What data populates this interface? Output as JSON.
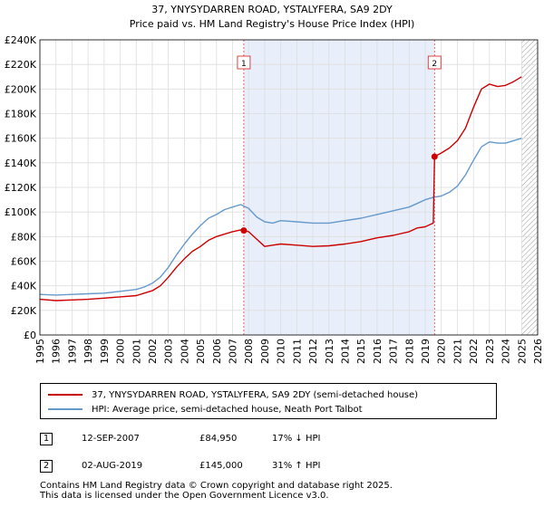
{
  "chart_data": {
    "type": "line",
    "title": "37, YNYSYDARREN ROAD, YSTALYFERA, SA9 2DY",
    "subtitle": "Price paid vs. HM Land Registry's House Price Index (HPI)",
    "xlabel": "",
    "ylabel": "",
    "xlim": [
      1995,
      2026
    ],
    "ylim": [
      0,
      240000
    ],
    "y_ticks": [
      0,
      20000,
      40000,
      60000,
      80000,
      100000,
      120000,
      140000,
      160000,
      180000,
      200000,
      220000,
      240000
    ],
    "y_tick_labels": [
      "£0",
      "£20K",
      "£40K",
      "£60K",
      "£80K",
      "£100K",
      "£120K",
      "£140K",
      "£160K",
      "£180K",
      "£200K",
      "£220K",
      "£240K"
    ],
    "x_ticks": [
      1995,
      1996,
      1997,
      1998,
      1999,
      2000,
      2001,
      2002,
      2003,
      2004,
      2005,
      2006,
      2007,
      2008,
      2009,
      2010,
      2011,
      2012,
      2013,
      2014,
      2015,
      2016,
      2017,
      2018,
      2019,
      2020,
      2021,
      2022,
      2023,
      2024,
      2025,
      2026
    ],
    "grid": true,
    "shaded_region": [
      2007.7,
      2019.58
    ],
    "hatched_region": [
      2025.0,
      2026
    ],
    "series": [
      {
        "name": "37, YNYSYDARREN ROAD, YSTALYFERA, SA9 2DY (semi-detached house)",
        "color": "#cc0000",
        "x": [
          1995.0,
          1996.0,
          1997.0,
          1998.0,
          1999.0,
          2000.0,
          2001.0,
          2001.5,
          2002.0,
          2002.5,
          2003.0,
          2003.5,
          2004.0,
          2004.5,
          2005.0,
          2005.5,
          2006.0,
          2006.5,
          2007.0,
          2007.5,
          2007.7,
          2008.0,
          2008.5,
          2009.0,
          2009.5,
          2010.0,
          2011.0,
          2012.0,
          2013.0,
          2014.0,
          2015.0,
          2016.0,
          2017.0,
          2018.0,
          2018.5,
          2019.0,
          2019.5,
          2019.58,
          2020.0,
          2020.5,
          2021.0,
          2021.5,
          2022.0,
          2022.5,
          2023.0,
          2023.5,
          2024.0,
          2024.5,
          2025.0
        ],
        "y": [
          29000,
          28000,
          28500,
          29000,
          30000,
          31000,
          32000,
          34000,
          36000,
          40000,
          47000,
          55000,
          62000,
          68000,
          72000,
          77000,
          80000,
          82000,
          84000,
          85500,
          84950,
          84000,
          78000,
          72000,
          73000,
          74000,
          73000,
          72000,
          72500,
          74000,
          76000,
          79000,
          81000,
          84000,
          87000,
          88000,
          91000,
          145000,
          148000,
          152000,
          158000,
          168000,
          185000,
          200000,
          204000,
          202000,
          203000,
          206000,
          210000
        ]
      },
      {
        "name": "HPI: Average price, semi-detached house, Neath Port Talbot",
        "color": "#6699cc",
        "x": [
          1995.0,
          1996.0,
          1997.0,
          1998.0,
          1999.0,
          2000.0,
          2001.0,
          2001.5,
          2002.0,
          2002.5,
          2003.0,
          2003.5,
          2004.0,
          2004.5,
          2005.0,
          2005.5,
          2006.0,
          2006.5,
          2007.0,
          2007.5,
          2008.0,
          2008.5,
          2009.0,
          2009.5,
          2010.0,
          2011.0,
          2012.0,
          2013.0,
          2014.0,
          2015.0,
          2016.0,
          2017.0,
          2018.0,
          2018.5,
          2019.0,
          2019.5,
          2020.0,
          2020.5,
          2021.0,
          2021.5,
          2022.0,
          2022.5,
          2023.0,
          2023.5,
          2024.0,
          2024.5,
          2025.0
        ],
        "y": [
          33000,
          32500,
          33000,
          33500,
          34000,
          35500,
          37000,
          39000,
          42000,
          47000,
          55000,
          65000,
          74000,
          82000,
          89000,
          95000,
          98000,
          102000,
          104000,
          106000,
          103000,
          96000,
          92000,
          91000,
          93000,
          92000,
          91000,
          91000,
          93000,
          95000,
          98000,
          101000,
          104000,
          107000,
          110000,
          112000,
          113000,
          116000,
          121000,
          130000,
          142000,
          153000,
          157000,
          156000,
          156000,
          158000,
          160000
        ]
      }
    ],
    "sales": [
      {
        "label": "1",
        "x": 2007.7,
        "y": 84950
      },
      {
        "label": "2",
        "x": 2019.58,
        "y": 145000
      }
    ]
  },
  "legend": {
    "property": "37, YNYSYDARREN ROAD, YSTALYFERA, SA9 2DY (semi-detached house)",
    "hpi": "HPI: Average price, semi-detached house, Neath Port Talbot"
  },
  "sales_table": [
    {
      "num": "1",
      "date": "12-SEP-2007",
      "price": "£84,950",
      "hpi": "17% ↓ HPI"
    },
    {
      "num": "2",
      "date": "02-AUG-2019",
      "price": "£145,000",
      "hpi": "31% ↑ HPI"
    }
  ],
  "footer": {
    "line1": "Contains HM Land Registry data © Crown copyright and database right 2025.",
    "line2": "This data is licensed under the Open Government Licence v3.0."
  }
}
